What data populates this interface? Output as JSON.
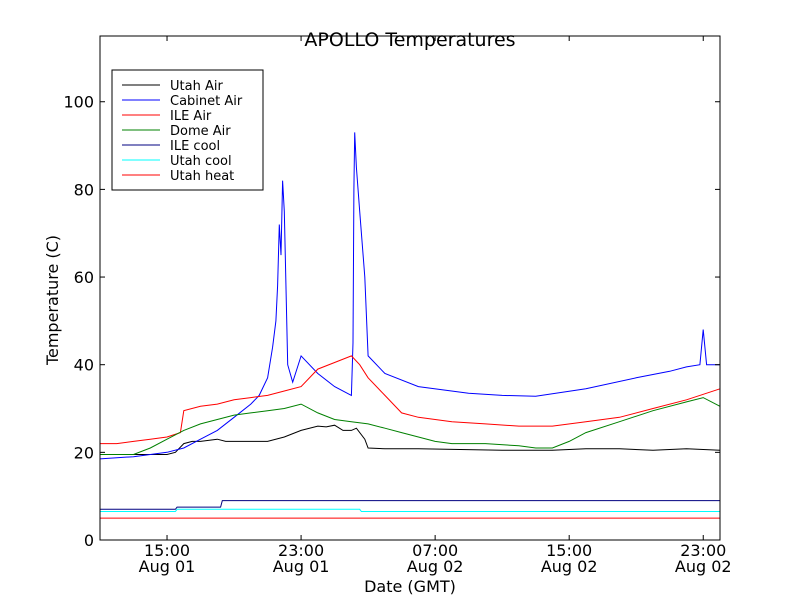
{
  "chart_data": {
    "type": "line",
    "title": "APOLLO Temperatures",
    "xlabel": "Date (GMT)",
    "ylabel": "Temperature (C)",
    "x_unit": "hours since Aug 01 00:00 GMT",
    "xlim": [
      11.0,
      48.0
    ],
    "ylim": [
      0,
      115
    ],
    "y_ticks": [
      0,
      20,
      40,
      60,
      80,
      100
    ],
    "x_ticks": [
      {
        "x": 15,
        "line1": "15:00",
        "line2": "Aug 01"
      },
      {
        "x": 23,
        "line1": "23:00",
        "line2": "Aug 01"
      },
      {
        "x": 31,
        "line1": "07:00",
        "line2": "Aug 02"
      },
      {
        "x": 39,
        "line1": "15:00",
        "line2": "Aug 02"
      },
      {
        "x": 47,
        "line1": "23:00",
        "line2": "Aug 02"
      }
    ],
    "legend_position": "upper-left",
    "series": [
      {
        "name": "Utah Air",
        "color": "#000000",
        "x": [
          11,
          15,
          15.5,
          16,
          16.5,
          17,
          18,
          18.5,
          19,
          20,
          21,
          22,
          23,
          24,
          24.5,
          25,
          25.5,
          26,
          26.3,
          26.8,
          27,
          28,
          30,
          35,
          38,
          40,
          42,
          44,
          46,
          48
        ],
        "y": [
          19.5,
          19.5,
          20,
          22,
          22.5,
          22.5,
          23,
          22.5,
          22.5,
          22.5,
          22.5,
          23.5,
          25,
          26,
          25.8,
          26.2,
          25,
          25,
          25.5,
          23,
          21,
          20.8,
          20.8,
          20.5,
          20.5,
          20.8,
          20.8,
          20.5,
          20.8,
          20.5
        ]
      },
      {
        "name": "Cabinet Air",
        "color": "#0000ff",
        "x": [
          11,
          13,
          14,
          15,
          16,
          17,
          18,
          19,
          20,
          20.5,
          21,
          21.3,
          21.5,
          21.6,
          21.7,
          21.8,
          21.9,
          22,
          22.2,
          22.5,
          23,
          24,
          25,
          26,
          26.1,
          26.15,
          26.2,
          26.3,
          26.5,
          26.8,
          27,
          28,
          30,
          33,
          35,
          37,
          40,
          43,
          45,
          46,
          46.8,
          47,
          47.2,
          47.5,
          48
        ],
        "y": [
          18.5,
          19,
          19.5,
          20,
          21,
          23,
          25,
          28,
          31,
          33,
          37,
          44,
          50,
          58,
          72,
          65,
          82,
          75,
          40,
          36,
          42,
          38,
          35,
          33,
          45,
          80,
          93,
          85,
          75,
          60,
          42,
          38,
          35,
          33.5,
          33,
          32.8,
          34.5,
          37,
          38.5,
          39.5,
          40,
          48,
          40,
          40,
          40
        ]
      },
      {
        "name": "ILE Air",
        "color": "#ff0000",
        "x": [
          11,
          12,
          13,
          14,
          15,
          15.8,
          16,
          17,
          18,
          19,
          20,
          21,
          22,
          23,
          24,
          25,
          26,
          26.5,
          27,
          28,
          29,
          30,
          32,
          34,
          36,
          38,
          40,
          42,
          44,
          46,
          48
        ],
        "y": [
          22,
          22,
          22.5,
          23,
          23.5,
          24.5,
          29.5,
          30.5,
          31,
          32,
          32.5,
          33,
          34,
          35,
          39,
          40.5,
          42,
          40,
          37,
          33,
          29,
          28,
          27,
          26.5,
          26,
          26,
          27,
          28,
          30,
          32,
          34.5
        ]
      },
      {
        "name": "Dome Air",
        "color": "#008000",
        "x": [
          11,
          13,
          14,
          15,
          16,
          17,
          18,
          19,
          20,
          21,
          22,
          23,
          24,
          25,
          26,
          27,
          28,
          29,
          30,
          31,
          32,
          34,
          36,
          37,
          38,
          39,
          40,
          42,
          44,
          46,
          47,
          48
        ],
        "y": [
          19.5,
          19.5,
          21,
          23,
          25,
          26.5,
          27.5,
          28.5,
          29,
          29.5,
          30,
          31,
          29,
          27.5,
          27,
          26.5,
          25.5,
          24.5,
          23.5,
          22.5,
          22,
          22,
          21.5,
          21,
          21,
          22.5,
          24.5,
          27,
          29.5,
          31.5,
          32.5,
          30.5
        ]
      },
      {
        "name": "ILE cool",
        "color": "#000080",
        "x": [
          11,
          15.5,
          15.6,
          18.2,
          18.3,
          48
        ],
        "y": [
          7,
          7,
          7.5,
          7.5,
          9,
          9
        ]
      },
      {
        "name": "Utah cool",
        "color": "#00ffff",
        "x": [
          11,
          15.5,
          15.6,
          26.5,
          26.6,
          48
        ],
        "y": [
          6.5,
          6.5,
          7,
          7,
          6.5,
          6.5
        ]
      },
      {
        "name": "Utah heat",
        "color": "#ff0000",
        "x": [
          11,
          48
        ],
        "y": [
          5,
          5
        ]
      }
    ]
  }
}
